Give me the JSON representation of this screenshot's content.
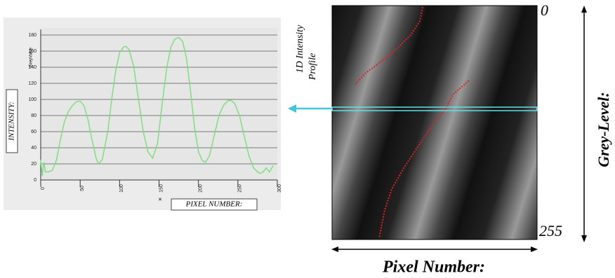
{
  "chart_data": {
    "type": "line",
    "y_label": "INTENSITY:",
    "y_axis_name": "GreyValue",
    "x_label": "PIXEL NUMBER:",
    "x_axis_name": "×",
    "x": [
      0,
      2,
      4,
      6,
      10,
      15,
      20,
      25,
      30,
      35,
      40,
      45,
      50,
      55,
      60,
      65,
      70,
      73,
      78,
      85,
      90,
      95,
      100,
      105,
      108,
      112,
      118,
      124,
      130,
      136,
      142,
      148,
      154,
      160,
      165,
      170,
      175,
      180,
      185,
      190,
      195,
      200,
      205,
      209,
      214,
      220,
      226,
      232,
      237,
      241,
      246,
      252,
      258,
      264,
      270,
      275,
      278,
      282,
      286,
      290,
      295
    ],
    "series": [
      {
        "name": "GreyValue",
        "color": "#7de07d",
        "values": [
          25,
          5,
          22,
          10,
          10,
          12,
          25,
          50,
          72,
          85,
          92,
          97,
          98,
          92,
          75,
          50,
          28,
          20,
          25,
          60,
          100,
          135,
          158,
          165,
          166,
          162,
          140,
          100,
          60,
          35,
          27,
          45,
          95,
          140,
          165,
          175,
          177,
          172,
          150,
          110,
          65,
          35,
          24,
          22,
          30,
          55,
          80,
          93,
          98,
          99,
          95,
          80,
          55,
          30,
          15,
          10,
          8,
          10,
          15,
          10,
          18
        ]
      }
    ],
    "xlim": [
      0,
      300
    ],
    "xticks": [
      0,
      50,
      100,
      150,
      200,
      250,
      300
    ],
    "ylim": [
      0,
      180
    ],
    "yticks": [
      0,
      20,
      40,
      60,
      80,
      100,
      120,
      140,
      160,
      180
    ],
    "grid": true
  },
  "annotations": {
    "profile_label": [
      "1D Intensity",
      "Profile"
    ],
    "grey_top": "0",
    "grey_bottom": "255",
    "grey_axis": "Grey-Level:",
    "pixel_axis": "Pixel Number:"
  }
}
